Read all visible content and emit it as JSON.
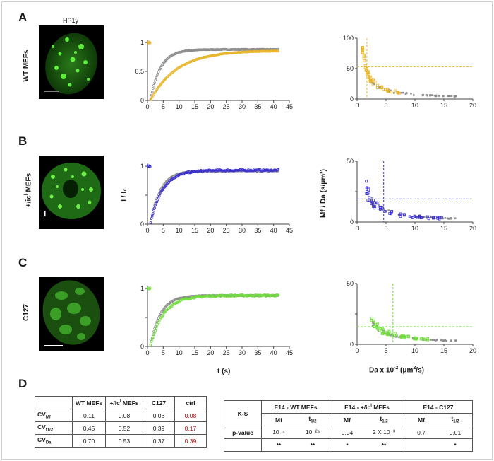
{
  "panels": {
    "A": "A",
    "B": "B",
    "C": "C",
    "D": "D"
  },
  "micro_title": "HP1γ",
  "rows": [
    {
      "label": "WT MEFs",
      "color": "#e8b52a"
    },
    {
      "label": "+/icl MEFs",
      "color": "#3a2fd0"
    },
    {
      "label": "C127",
      "color": "#6fe03a"
    }
  ],
  "axis_titles": {
    "frap_y": "I / I₀",
    "frap_x": "t (s)",
    "scatter_y": "Mf / Da (s/μm²)",
    "scatter_x": "Da x 10⁻² (μm²/s)"
  },
  "chart_data": [
    {
      "type": "scatter",
      "panel": "frap",
      "x_ticks": [
        0,
        5,
        10,
        15,
        20,
        25,
        30,
        35,
        40,
        45
      ],
      "y_ticks_A": [
        0,
        0.5,
        1
      ],
      "xlim": [
        0,
        45
      ],
      "ylim": [
        0,
        1.05
      ],
      "series": [
        {
          "name": "ctrl",
          "color": "#8c8c8c",
          "tau": 3.2,
          "plateau_A": 0.88,
          "plateau_B": 0.92,
          "plateau_C": 0.88
        },
        {
          "name": "WT MEFs",
          "color": "#e8b52a",
          "tau": 8.5,
          "plateau": 0.86
        },
        {
          "name": "+/icl MEFs",
          "color": "#3a2fd0",
          "tau": 3.8,
          "plateau": 0.93
        },
        {
          "name": "C127",
          "color": "#6fe03a",
          "tau": 4.2,
          "plateau": 0.88
        }
      ],
      "t_start": 1.0,
      "t_end": 41.5
    },
    {
      "type": "scatter",
      "panel": "ratio",
      "x_ticks": [
        0,
        5,
        10,
        15,
        20
      ],
      "xlim": [
        0,
        20
      ],
      "rows": [
        {
          "ylim": [
            0,
            100
          ],
          "y_ticks": [
            0,
            50,
            100
          ],
          "y_ticklabels": [
            "0",
            "50",
            "100"
          ],
          "vline": 1.7,
          "hline": 53,
          "color": "#e8b52a"
        },
        {
          "ylim": [
            0,
            50
          ],
          "y_ticks": [
            0,
            25,
            50
          ],
          "y_ticklabels": [
            "0",
            "",
            "50"
          ],
          "vline": 4.6,
          "hline": 19,
          "color": "#3a2fd0"
        },
        {
          "ylim": [
            0,
            50
          ],
          "y_ticks": [
            0,
            25,
            50
          ],
          "y_ticklabels": [
            "0",
            "",
            "50"
          ],
          "vline": 6.2,
          "hline": 14.5,
          "color": "#6fe03a"
        }
      ]
    }
  ],
  "table1": {
    "headers": [
      "",
      "WT MEFs",
      "+/icl MEFs",
      "C127",
      "ctrl"
    ],
    "rows": [
      {
        "label": "CV",
        "sub": "Mf",
        "values": [
          "0.11",
          "0.08",
          "0.08",
          "0.08"
        ]
      },
      {
        "label": "CV",
        "sub": "t1/2",
        "values": [
          "0.45",
          "0.52",
          "0.39",
          "0.17"
        ]
      },
      {
        "label": "CV",
        "sub": "Da",
        "values": [
          "0.70",
          "0.53",
          "0.37",
          "0.39"
        ]
      }
    ]
  },
  "table2": {
    "corner": "K-S",
    "groups": [
      "E14 - WT MEFs",
      "E14 - +/icl MEFs",
      "E14 - C127"
    ],
    "sub_headers": [
      "Mf",
      "t1/2",
      "Mf",
      "t1/2",
      "Mf",
      "t1/2"
    ],
    "row_label": "p-value",
    "pvalues": [
      "10⁻⁴",
      "10⁻²⁸",
      "0.04",
      "2 X 10⁻³",
      "0.7",
      "0.01"
    ],
    "stars": [
      "**",
      "**",
      "*",
      "**",
      "",
      "*"
    ]
  }
}
